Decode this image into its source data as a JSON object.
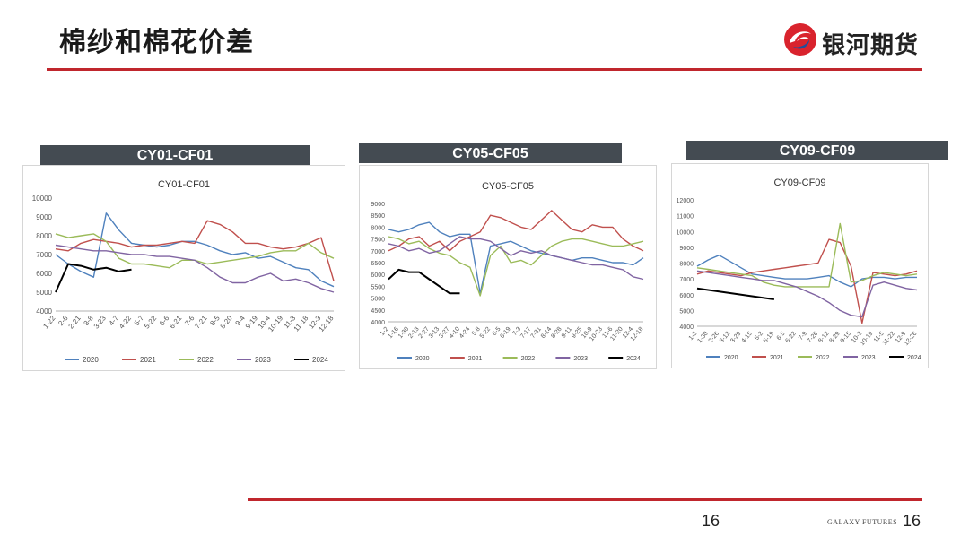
{
  "page": {
    "title": "棉纱和棉花价差",
    "page_number": "16",
    "footer_brand": "GALAXY FUTURES"
  },
  "logo": {
    "text": "银河期货",
    "colors": {
      "red": "#d9232d",
      "blue": "#1e4f9c"
    }
  },
  "colors": {
    "rule": "#c0262d",
    "header_bg": "#444b52",
    "series": [
      "#4f81bd",
      "#c0504d",
      "#9bbb59",
      "#8064a2",
      "#000000"
    ]
  },
  "panels": [
    {
      "header": "CY01-CF01"
    },
    {
      "header": "CY05-CF05"
    },
    {
      "header": "CY09-CF09"
    }
  ],
  "chart_data": [
    {
      "type": "line",
      "title": "CY01-CF01",
      "ylim": [
        4000,
        10000
      ],
      "yticks": [
        4000,
        5000,
        6000,
        7000,
        8000,
        9000,
        10000
      ],
      "xticks": [
        "1-22",
        "2-6",
        "2-21",
        "3-8",
        "3-23",
        "4-7",
        "4-22",
        "5-7",
        "5-22",
        "6-6",
        "6-21",
        "7-6",
        "7-21",
        "8-5",
        "8-20",
        "9-4",
        "9-19",
        "10-4",
        "10-19",
        "11-3",
        "11-18",
        "12-3",
        "12-18"
      ],
      "series": [
        {
          "name": "2020",
          "values": [
            7000,
            6500,
            6100,
            5800,
            9200,
            8300,
            7600,
            7500,
            7400,
            7500,
            7700,
            7700,
            7500,
            7200,
            7000,
            7100,
            6800,
            6900,
            6600,
            6300,
            6200,
            5600,
            5300
          ]
        },
        {
          "name": "2021",
          "values": [
            7300,
            7200,
            7600,
            7800,
            7700,
            7600,
            7400,
            7500,
            7500,
            7600,
            7700,
            7600,
            8800,
            8600,
            8200,
            7600,
            7600,
            7400,
            7300,
            7400,
            7600,
            7900,
            5600
          ]
        },
        {
          "name": "2022",
          "values": [
            8100,
            7900,
            8000,
            8100,
            7700,
            6800,
            6500,
            6500,
            6400,
            6300,
            6700,
            6700,
            6500,
            6600,
            6700,
            6800,
            6900,
            7100,
            7200,
            7200,
            7600,
            7100,
            6800
          ]
        },
        {
          "name": "2023",
          "values": [
            7500,
            7400,
            7300,
            7200,
            7200,
            7100,
            7000,
            7000,
            6900,
            6900,
            6800,
            6700,
            6300,
            5800,
            5500,
            5500,
            5800,
            6000,
            5600,
            5700,
            5500,
            5200,
            5000
          ]
        },
        {
          "name": "2024",
          "values": [
            5000,
            6500,
            6400,
            6200,
            6300,
            6100,
            6200,
            null,
            null,
            null,
            null,
            null,
            null,
            null,
            null,
            null,
            null,
            null,
            null,
            null,
            null,
            null,
            null
          ]
        }
      ]
    },
    {
      "type": "line",
      "title": "CY05-CF05",
      "ylim": [
        4000,
        9000
      ],
      "yticks": [
        4000,
        4500,
        5000,
        5500,
        6000,
        6500,
        7000,
        7500,
        8000,
        8500,
        9000
      ],
      "xticks": [
        "1-2",
        "1-16",
        "1-30",
        "2-13",
        "2-27",
        "3-13",
        "3-27",
        "4-10",
        "4-24",
        "5-8",
        "5-22",
        "6-5",
        "6-19",
        "7-3",
        "7-17",
        "7-31",
        "8-14",
        "8-28",
        "9-11",
        "9-25",
        "10-9",
        "10-23",
        "11-6",
        "11-20",
        "12-4",
        "12-18"
      ],
      "series": [
        {
          "name": "2020",
          "values": [
            7900,
            7800,
            7900,
            8100,
            8200,
            7800,
            7600,
            7700,
            7700,
            5200,
            7200,
            7300,
            7400,
            7200,
            7000,
            6900,
            6800,
            6700,
            6600,
            6700,
            6700,
            6600,
            6500,
            6500,
            6400,
            6700
          ]
        },
        {
          "name": "2021",
          "values": [
            7000,
            7200,
            7500,
            7600,
            7200,
            7400,
            7000,
            7400,
            7600,
            7800,
            8500,
            8400,
            8200,
            8000,
            7900,
            8300,
            8700,
            8300,
            7900,
            7800,
            8100,
            8000,
            8000,
            7500,
            7200,
            7000
          ]
        },
        {
          "name": "2022",
          "values": [
            7600,
            7500,
            7300,
            7400,
            7100,
            6900,
            6800,
            6500,
            6300,
            5100,
            6800,
            7200,
            6500,
            6600,
            6400,
            6800,
            7200,
            7400,
            7500,
            7500,
            7400,
            7300,
            7200,
            7200,
            7300,
            7400
          ]
        },
        {
          "name": "2023",
          "values": [
            7300,
            7200,
            7000,
            7100,
            6900,
            7000,
            7300,
            7600,
            7500,
            7500,
            7400,
            7100,
            6800,
            7000,
            6900,
            7000,
            6800,
            6700,
            6600,
            6500,
            6400,
            6400,
            6300,
            6200,
            5900,
            5800
          ]
        },
        {
          "name": "2024",
          "values": [
            5800,
            6200,
            6100,
            6100,
            5800,
            5500,
            5200,
            5200,
            null,
            null,
            null,
            null,
            null,
            null,
            null,
            null,
            null,
            null,
            null,
            null,
            null,
            null,
            null,
            null,
            null,
            null
          ]
        }
      ]
    },
    {
      "type": "line",
      "title": "CY09-CF09",
      "ylim": [
        4000,
        12000
      ],
      "yticks": [
        4000,
        5000,
        6000,
        7000,
        8000,
        9000,
        10000,
        11000,
        12000
      ],
      "xticks": [
        "1-3",
        "1-30",
        "2-26",
        "3-12",
        "3-29",
        "4-15",
        "5-2",
        "5-19",
        "6-5",
        "6-22",
        "7-9",
        "7-26",
        "8-12",
        "8-29",
        "9-15",
        "10-2",
        "10-19",
        "11-5",
        "11-22",
        "12-9",
        "12-26"
      ],
      "series": [
        {
          "name": "2020",
          "values": [
            7800,
            8200,
            8500,
            8100,
            7700,
            7300,
            7200,
            7100,
            7000,
            7000,
            7000,
            7100,
            7200,
            6800,
            6500,
            7000,
            7100,
            7100,
            7000,
            7100,
            7100
          ]
        },
        {
          "name": "2021",
          "values": [
            7300,
            7500,
            7400,
            7300,
            7200,
            7400,
            7500,
            7600,
            7700,
            7800,
            7900,
            8000,
            9500,
            9300,
            7800,
            4200,
            7400,
            7300,
            7200,
            7300,
            7500
          ]
        },
        {
          "name": "2022",
          "values": [
            7700,
            7600,
            7500,
            7400,
            7300,
            7200,
            6800,
            6600,
            6500,
            6500,
            6500,
            6500,
            6500,
            10500,
            6800,
            6900,
            7200,
            7400,
            7300,
            7200,
            7300
          ]
        },
        {
          "name": "2023",
          "values": [
            7500,
            7400,
            7300,
            7200,
            7100,
            7000,
            6900,
            6900,
            6700,
            6500,
            6200,
            5900,
            5500,
            5000,
            4700,
            4600,
            6600,
            6800,
            6600,
            6400,
            6300
          ]
        },
        {
          "name": "2024",
          "values": [
            6400,
            6300,
            6200,
            6100,
            6000,
            5900,
            5800,
            5700,
            null,
            null,
            null,
            null,
            null,
            null,
            null,
            null,
            null,
            null,
            null,
            null,
            null
          ]
        }
      ]
    }
  ]
}
